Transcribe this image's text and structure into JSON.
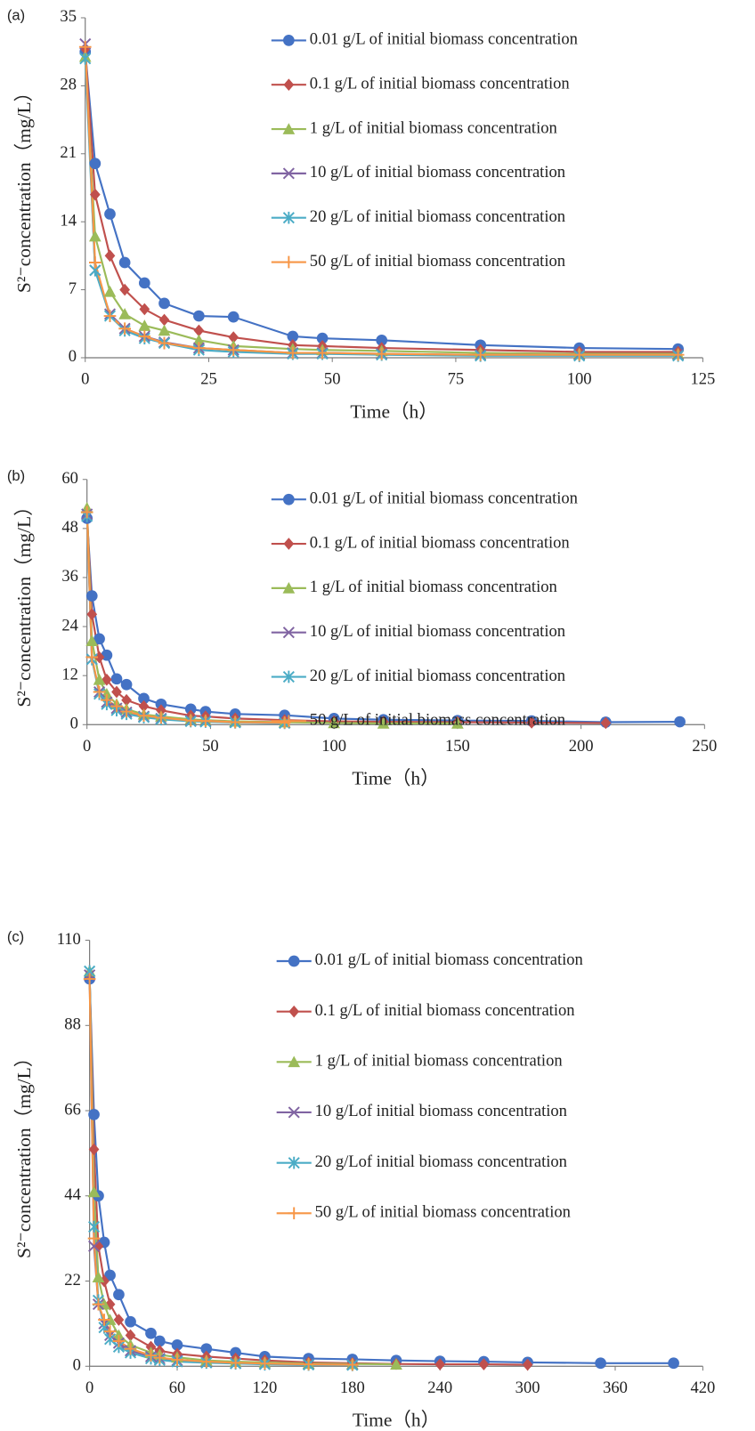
{
  "chart_data": [
    {
      "type": "line",
      "panel_label": "(a)",
      "x_label": "Time（h）",
      "y_label": "S²⁻concentration（mg/L）",
      "x": [
        0,
        2,
        5,
        8,
        12,
        16,
        23,
        30,
        42,
        48,
        60,
        80,
        100,
        120
      ],
      "xlim": [
        0,
        125
      ],
      "xticks": [
        0,
        25,
        50,
        75,
        100,
        125
      ],
      "ylim": [
        0,
        35
      ],
      "yticks": [
        0,
        7,
        14,
        21,
        28,
        35
      ],
      "grid": false,
      "legend": "upper right",
      "series": [
        {
          "name": "0.01 g/L of initial biomass concentration",
          "color": "#4472c4",
          "marker": "circle",
          "values": [
            31.5,
            20,
            14.8,
            9.8,
            7.7,
            5.6,
            4.3,
            4.2,
            2.2,
            2.0,
            1.8,
            1.3,
            1.0,
            0.9
          ]
        },
        {
          "name": "0.1 g/L of initial biomass concentration",
          "color": "#c0504d",
          "marker": "diamond",
          "values": [
            31.8,
            16.8,
            10.5,
            7,
            5,
            3.9,
            2.8,
            2.1,
            1.3,
            1.2,
            1.0,
            0.8,
            0.6,
            0.6
          ]
        },
        {
          "name": "1 g/L of initial biomass concentration",
          "color": "#9bbb59",
          "marker": "triangle",
          "values": [
            31,
            12.5,
            6.8,
            4.5,
            3.3,
            2.8,
            1.8,
            1.2,
            0.9,
            0.8,
            0.7,
            0.5,
            0.4,
            0.4
          ]
        },
        {
          "name": "10 g/L of initial biomass concentration",
          "color": "#8064a2",
          "marker": "x",
          "values": [
            32.3,
            9,
            4.5,
            3,
            2.2,
            1.6,
            1.0,
            0.8,
            0.5,
            0.5,
            0.4,
            0.3,
            0.3,
            0.3
          ]
        },
        {
          "name": "20 g/L of initial biomass concentration",
          "color": "#4bacc6",
          "marker": "asterisk",
          "values": [
            30.8,
            9,
            4.3,
            2.8,
            2,
            1.5,
            0.8,
            0.6,
            0.4,
            0.4,
            0.3,
            0.2,
            0.2,
            0.2
          ]
        },
        {
          "name": "50 g/L of initial biomass concentration",
          "color": "#f79646",
          "marker": "plus",
          "values": [
            32,
            9.8,
            4.3,
            3,
            2.2,
            1.5,
            1,
            0.8,
            0.5,
            0.5,
            0.4,
            0.3,
            0.3,
            0.3
          ]
        }
      ]
    },
    {
      "type": "line",
      "panel_label": "(b)",
      "x_label": "Time（h）",
      "y_label": "S²⁻concentration（mg/L）",
      "x": [
        0,
        2,
        5,
        8,
        12,
        16,
        23,
        30,
        42,
        48,
        60,
        80,
        100,
        120,
        150,
        180,
        210,
        240
      ],
      "xlim": [
        0,
        250
      ],
      "xticks": [
        0,
        50,
        100,
        150,
        200,
        250
      ],
      "ylim": [
        0,
        60
      ],
      "yticks": [
        0,
        12,
        24,
        36,
        48,
        60
      ],
      "grid": false,
      "legend": "upper right",
      "series": [
        {
          "name": "0.01 g/L of initial biomass concentration",
          "color": "#4472c4",
          "marker": "circle",
          "values": [
            50.5,
            31.5,
            21,
            17,
            11.2,
            9.8,
            6.4,
            5,
            3.8,
            3.2,
            2.6,
            2.3,
            1.5,
            1.2,
            1.0,
            0.9,
            0.6,
            0.7
          ]
        },
        {
          "name": "0.1 g/L of initial biomass concentration",
          "color": "#c0504d",
          "marker": "diamond",
          "values": [
            52,
            27,
            16.5,
            11,
            8,
            6,
            4.5,
            3.5,
            2.2,
            2,
            1.5,
            1.1,
            0.8,
            0.7,
            0.6,
            0.5,
            0.4,
            null
          ]
        },
        {
          "name": "1 g/L of initial biomass concentration",
          "color": "#9bbb59",
          "marker": "triangle",
          "values": [
            53,
            20.5,
            11,
            7.5,
            5,
            3.8,
            2.5,
            2,
            1.3,
            1.1,
            0.8,
            0.6,
            0.4,
            0.3,
            0.3,
            null,
            null,
            null
          ]
        },
        {
          "name": "10 g/L of initial biomass concentration",
          "color": "#8064a2",
          "marker": "x",
          "values": [
            51.5,
            16,
            8,
            5.5,
            4,
            3,
            2,
            1.5,
            1,
            0.9,
            0.6,
            0.4,
            null,
            null,
            null,
            null,
            null,
            null
          ]
        },
        {
          "name": "20 g/L of initial biomass concentration",
          "color": "#4bacc6",
          "marker": "asterisk",
          "values": [
            51,
            16,
            7.5,
            5,
            3.5,
            2.6,
            1.8,
            1.3,
            0.8,
            0.7,
            0.5,
            0.4,
            null,
            null,
            null,
            null,
            null,
            null
          ]
        },
        {
          "name": "50 g/L of initial biomass concentration",
          "color": "#f79646",
          "marker": "plus",
          "values": [
            52,
            16.5,
            8,
            6,
            4.5,
            3.2,
            2.2,
            1.7,
            1,
            0.9,
            0.6,
            0.5,
            null,
            null,
            null,
            null,
            null,
            null
          ]
        }
      ]
    },
    {
      "type": "line",
      "panel_label": "(c)",
      "x_label": "Time（h）",
      "y_label": "S²⁻concentration（mg/L）",
      "x": [
        0,
        3,
        6,
        10,
        14,
        20,
        28,
        42,
        48,
        60,
        80,
        100,
        120,
        150,
        180,
        210,
        240,
        270,
        300,
        350,
        400
      ],
      "xlim": [
        0,
        420
      ],
      "xticks": [
        0,
        60,
        120,
        180,
        240,
        300,
        360,
        420
      ],
      "ylim": [
        0,
        110
      ],
      "yticks": [
        0,
        22,
        44,
        66,
        88,
        110
      ],
      "grid": false,
      "legend": "upper right",
      "series": [
        {
          "name": "0.01 g/L of initial biomass concentration",
          "color": "#4472c4",
          "marker": "circle",
          "values": [
            100,
            65,
            44,
            32,
            23.5,
            18.5,
            11.5,
            8.5,
            6.5,
            5.5,
            4.5,
            3.5,
            2.5,
            2,
            1.8,
            1.5,
            1.3,
            1.2,
            1,
            0.8,
            0.8
          ]
        },
        {
          "name": "0.1 g/L of initial biomass concentration",
          "color": "#c0504d",
          "marker": "diamond",
          "values": [
            101,
            56,
            31,
            22,
            16,
            12,
            8,
            5,
            4,
            3.2,
            2.5,
            2,
            1.5,
            1,
            0.8,
            0.6,
            0.5,
            0.5,
            0.4,
            null,
            null
          ]
        },
        {
          "name": "1 g/L of initial biomass concentration",
          "color": "#9bbb59",
          "marker": "triangle",
          "values": [
            102,
            45,
            23,
            16,
            12,
            8,
            5.5,
            3.5,
            3,
            2.3,
            1.5,
            1.2,
            1,
            0.7,
            0.6,
            0.5,
            null,
            null,
            null,
            null,
            null
          ]
        },
        {
          "name": "10 g/Lof initial biomass concentration",
          "color": "#8064a2",
          "marker": "x",
          "values": [
            101,
            31,
            16,
            11,
            8,
            6,
            4,
            2.5,
            2,
            1.5,
            1,
            0.8,
            0.6,
            0.5,
            0.4,
            null,
            null,
            null,
            null,
            null,
            null
          ]
        },
        {
          "name": "20 g/Lof initial biomass concentration",
          "color": "#4bacc6",
          "marker": "asterisk",
          "values": [
            102,
            36,
            17,
            10,
            7,
            5,
            3.5,
            2,
            1.6,
            1.2,
            0.9,
            0.7,
            0.5,
            0.4,
            0.3,
            null,
            null,
            null,
            null,
            null,
            null
          ]
        },
        {
          "name": "50 g/L of initial biomass concentration",
          "color": "#f79646",
          "marker": "plus",
          "values": [
            100,
            33,
            16,
            12,
            9,
            6.5,
            4.5,
            2.8,
            2.2,
            1.7,
            1.2,
            0.9,
            0.7,
            0.5,
            0.4,
            null,
            null,
            null,
            null,
            null,
            null
          ]
        }
      ]
    }
  ]
}
